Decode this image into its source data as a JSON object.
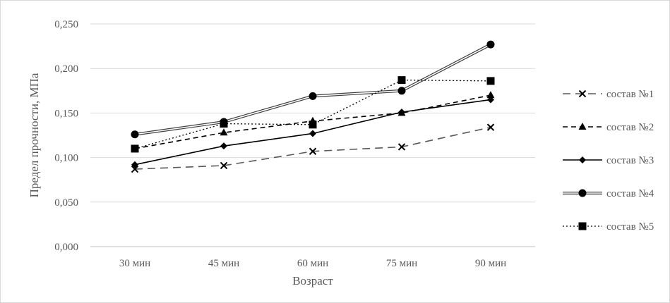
{
  "chart_data": {
    "type": "line",
    "title": "",
    "xlabel": "Возраст",
    "ylabel": "Предел прочности, МПа",
    "categories": [
      "30 мин",
      "45 мин",
      "60 мин",
      "75 мин",
      "90 мин"
    ],
    "yticks": [
      "0,000",
      "0,050",
      "0,100",
      "0,150",
      "0,200",
      "0,250"
    ],
    "ylim": [
      0,
      0.25
    ],
    "grid": "horizontal",
    "legend_position": "right",
    "series": [
      {
        "name": "состав №1",
        "values": [
          0.087,
          0.091,
          0.107,
          0.112,
          0.134
        ],
        "marker": "x",
        "dash": "dashed-long",
        "color": "#595959"
      },
      {
        "name": "состав №2",
        "values": [
          0.11,
          0.128,
          0.141,
          0.15,
          0.17
        ],
        "marker": "triangle",
        "dash": "dashed",
        "color": "#000000"
      },
      {
        "name": "состав №3",
        "values": [
          0.092,
          0.113,
          0.127,
          0.151,
          0.165
        ],
        "marker": "diamond",
        "dash": "solid",
        "color": "#000000"
      },
      {
        "name": "состав №4",
        "values": [
          0.126,
          0.14,
          0.169,
          0.175,
          0.227
        ],
        "marker": "circle",
        "dash": "double",
        "color": "#000000"
      },
      {
        "name": "состав №5",
        "values": [
          0.11,
          0.138,
          0.137,
          0.187,
          0.186
        ],
        "marker": "square",
        "dash": "dotted",
        "color": "#000000"
      }
    ]
  }
}
